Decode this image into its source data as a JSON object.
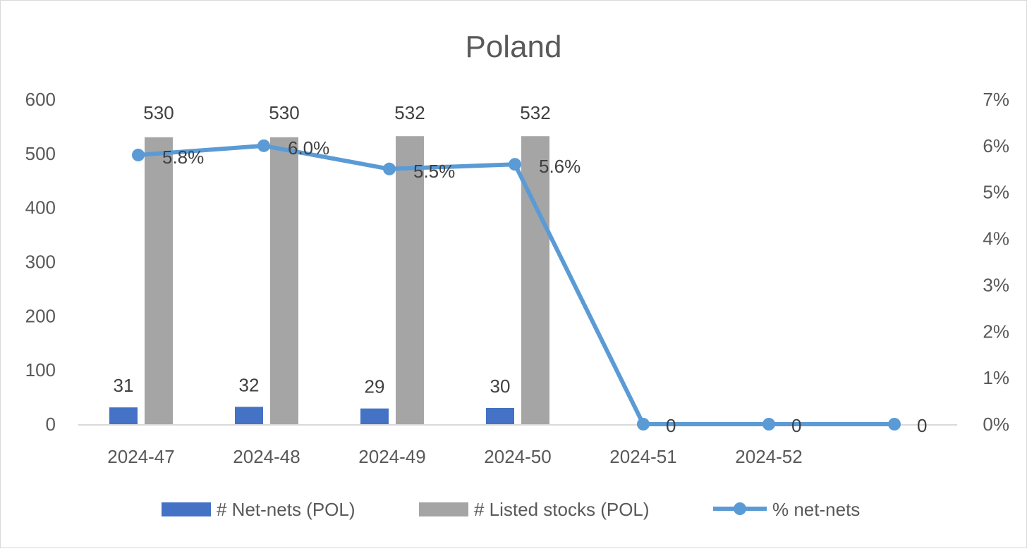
{
  "chart_data": {
    "type": "bar",
    "title": "Poland",
    "categories": [
      "2024-47",
      "2024-48",
      "2024-49",
      "2024-50",
      "2024-51",
      "2024-52",
      ""
    ],
    "series": [
      {
        "name": "# Net-nets (POL)",
        "chart": "bar",
        "axis": "primary",
        "color": "#4472c4",
        "values": [
          31,
          32,
          29,
          30,
          null,
          null,
          null
        ],
        "labels": [
          "31",
          "32",
          "29",
          "30",
          "",
          "",
          ""
        ]
      },
      {
        "name": "# Listed stocks (POL)",
        "chart": "bar",
        "axis": "primary",
        "color": "#a5a5a5",
        "values": [
          530,
          530,
          532,
          532,
          null,
          null,
          null
        ],
        "labels": [
          "530",
          "530",
          "532",
          "532",
          "",
          "",
          ""
        ]
      },
      {
        "name": "% net-nets",
        "chart": "line",
        "axis": "secondary",
        "color": "#5b9bd5",
        "values": [
          0.058,
          0.06,
          0.055,
          0.056,
          0,
          0,
          0
        ],
        "labels": [
          "5.8%",
          "6.0%",
          "5.5%",
          "5.6%",
          "0",
          "0",
          "0"
        ]
      }
    ],
    "y_axis": {
      "ylim": [
        0,
        600
      ],
      "ticks": [
        "0",
        "100",
        "200",
        "300",
        "400",
        "500",
        "600"
      ]
    },
    "y2_axis": {
      "ylim": [
        0,
        0.07
      ],
      "ticks": [
        "0%",
        "1%",
        "2%",
        "3%",
        "4%",
        "5%",
        "6%",
        "7%"
      ]
    },
    "grid": false,
    "legend": "bottom"
  }
}
